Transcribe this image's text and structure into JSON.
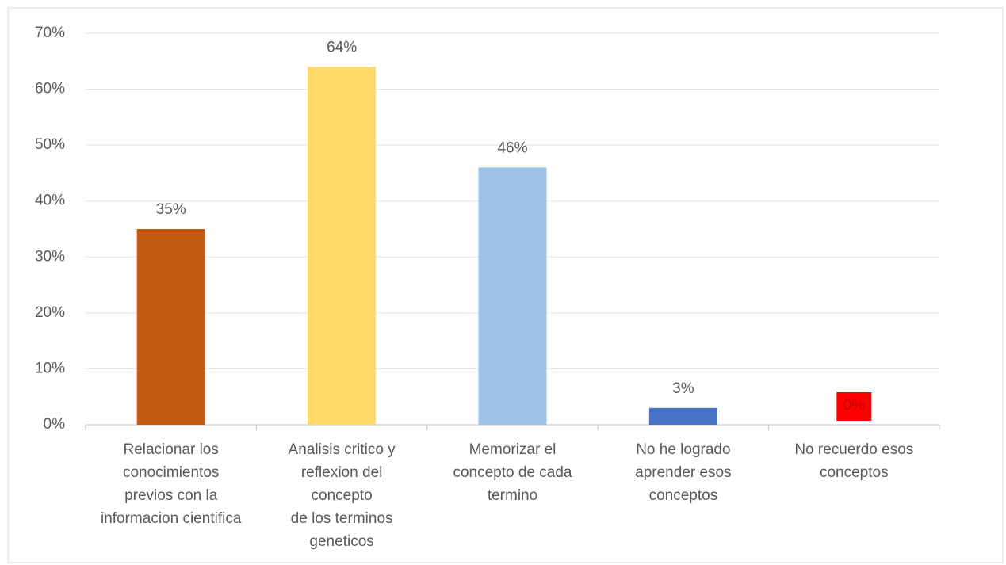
{
  "chart_data": {
    "type": "bar",
    "categories": [
      "Relacionar los\nconocimientos\nprevios con la\ninformacion cientifica",
      "Analisis  critico y\nreflexion  del\nconcepto\nde los terminos\ngeneticos",
      "Memorizar el\nconcepto de cada\ntermino",
      "No he logrado\naprender esos\nconceptos",
      "No recuerdo esos\nconceptos"
    ],
    "values": [
      35,
      64,
      46,
      3,
      0
    ],
    "value_labels": [
      "35%",
      "64%",
      "46%",
      "3%",
      "0%"
    ],
    "colors": [
      "#c55a11",
      "#ffd966",
      "#9dc3e6",
      "#4472c4",
      "#ff0000"
    ],
    "ylim": [
      0,
      70
    ],
    "yticks": [
      {
        "value": 0,
        "label": "0%"
      },
      {
        "value": 10,
        "label": "10%"
      },
      {
        "value": 20,
        "label": "20%"
      },
      {
        "value": 30,
        "label": "30%"
      },
      {
        "value": 40,
        "label": "40%"
      },
      {
        "value": 50,
        "label": "50%"
      },
      {
        "value": 60,
        "label": "60%"
      },
      {
        "value": 70,
        "label": "70%"
      }
    ],
    "grid": true
  }
}
